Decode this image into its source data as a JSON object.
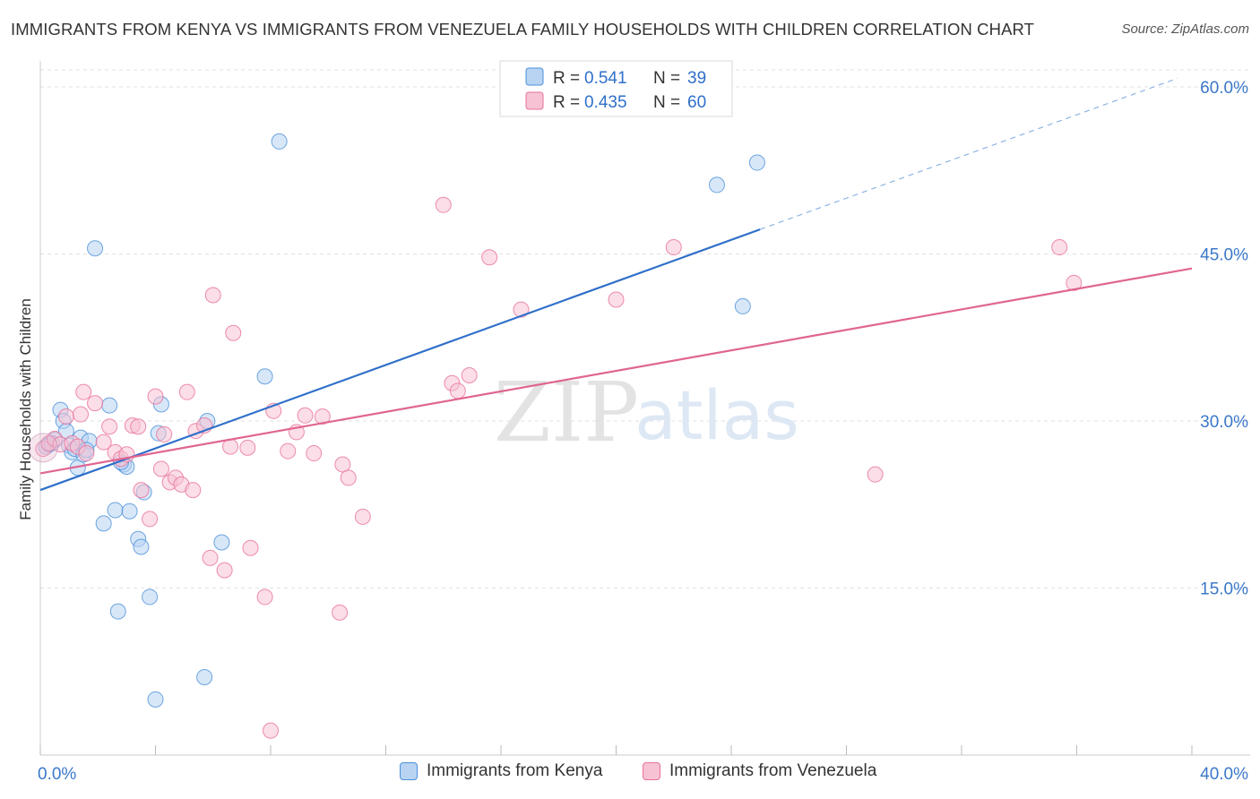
{
  "chart_data": {
    "type": "scatter",
    "title": "IMMIGRANTS FROM KENYA VS IMMIGRANTS FROM VENEZUELA FAMILY HOUSEHOLDS WITH CHILDREN CORRELATION CHART",
    "source": "Source: ZipAtlas.com",
    "ylabel": "Family Households with Children",
    "xlim": [
      0,
      40
    ],
    "ylim": [
      0,
      63
    ],
    "x_tick_labels": [
      "0.0%",
      "40.0%"
    ],
    "y_ticks": [
      15,
      30,
      45,
      60
    ],
    "y_tick_labels": [
      "15.0%",
      "30.0%",
      "45.0%",
      "60.0%"
    ],
    "watermark": {
      "zip": "ZIP",
      "atlas": "atlas"
    },
    "legend": {
      "r_label": "R =",
      "n_label": "N =",
      "entries": [
        {
          "r": "0.541",
          "n": "39"
        },
        {
          "r": "0.435",
          "n": "60"
        }
      ]
    },
    "series": [
      {
        "name": "Immigrants from Kenya",
        "color": "#4a90d9",
        "fill": "#b8d4f2",
        "trend": {
          "x0": 0,
          "y0": 23.8,
          "x1": 25,
          "y1": 47.2,
          "dash_to_x": 39.5
        },
        "points": [
          [
            0.2,
            27.7
          ],
          [
            0.3,
            27.9
          ],
          [
            0.5,
            28.3
          ],
          [
            0.7,
            31.0
          ],
          [
            0.8,
            30.0
          ],
          [
            0.9,
            29.1
          ],
          [
            1.0,
            27.8
          ],
          [
            1.1,
            27.2
          ],
          [
            1.2,
            27.5
          ],
          [
            1.3,
            25.8
          ],
          [
            1.4,
            28.5
          ],
          [
            1.5,
            27.0
          ],
          [
            1.7,
            28.2
          ],
          [
            1.9,
            45.5
          ],
          [
            2.4,
            31.4
          ],
          [
            2.2,
            20.8
          ],
          [
            2.6,
            22.0
          ],
          [
            2.7,
            12.9
          ],
          [
            2.9,
            26.1
          ],
          [
            3.0,
            25.9
          ],
          [
            3.1,
            21.9
          ],
          [
            3.4,
            19.4
          ],
          [
            3.5,
            18.7
          ],
          [
            3.6,
            23.6
          ],
          [
            3.8,
            14.2
          ],
          [
            4.0,
            5.0
          ],
          [
            4.1,
            28.9
          ],
          [
            4.2,
            31.5
          ],
          [
            5.7,
            7.0
          ],
          [
            5.8,
            30.0
          ],
          [
            6.3,
            19.1
          ],
          [
            7.8,
            34.0
          ],
          [
            8.3,
            55.1
          ],
          [
            23.5,
            51.2
          ],
          [
            24.4,
            40.3
          ],
          [
            24.9,
            53.2
          ],
          [
            0.4,
            28.0
          ],
          [
            1.6,
            27.4
          ],
          [
            2.8,
            26.3
          ]
        ]
      },
      {
        "name": "Immigrants from Venezuela",
        "color": "#e8709a",
        "fill": "#f7c3d4",
        "trend": {
          "x0": 0,
          "y0": 25.3,
          "x1": 40,
          "y1": 43.7
        },
        "points": [
          [
            0.1,
            27.5
          ],
          [
            0.3,
            28.0
          ],
          [
            0.5,
            28.4
          ],
          [
            0.7,
            27.9
          ],
          [
            0.9,
            30.4
          ],
          [
            1.1,
            28.0
          ],
          [
            1.3,
            27.7
          ],
          [
            1.4,
            30.6
          ],
          [
            1.5,
            32.6
          ],
          [
            1.6,
            27.1
          ],
          [
            1.9,
            31.6
          ],
          [
            2.2,
            28.1
          ],
          [
            2.4,
            29.5
          ],
          [
            2.6,
            27.2
          ],
          [
            2.8,
            26.6
          ],
          [
            3.0,
            27.0
          ],
          [
            3.2,
            29.6
          ],
          [
            3.4,
            29.5
          ],
          [
            3.5,
            23.8
          ],
          [
            3.8,
            21.2
          ],
          [
            4.0,
            32.2
          ],
          [
            4.2,
            25.7
          ],
          [
            4.3,
            28.8
          ],
          [
            4.5,
            24.5
          ],
          [
            4.7,
            24.9
          ],
          [
            4.9,
            24.3
          ],
          [
            5.1,
            32.6
          ],
          [
            5.3,
            23.8
          ],
          [
            5.4,
            29.1
          ],
          [
            5.7,
            29.6
          ],
          [
            5.9,
            17.7
          ],
          [
            6.0,
            41.3
          ],
          [
            6.4,
            16.6
          ],
          [
            6.6,
            27.7
          ],
          [
            6.7,
            37.9
          ],
          [
            7.2,
            27.6
          ],
          [
            7.3,
            18.6
          ],
          [
            7.8,
            14.2
          ],
          [
            8.1,
            30.9
          ],
          [
            8.0,
            2.2
          ],
          [
            8.6,
            27.3
          ],
          [
            8.9,
            29.0
          ],
          [
            9.2,
            30.5
          ],
          [
            9.5,
            27.1
          ],
          [
            9.8,
            30.4
          ],
          [
            10.4,
            12.8
          ],
          [
            10.5,
            26.1
          ],
          [
            10.7,
            24.9
          ],
          [
            11.2,
            21.4
          ],
          [
            14.0,
            49.4
          ],
          [
            14.3,
            33.4
          ],
          [
            14.5,
            32.7
          ],
          [
            14.9,
            34.1
          ],
          [
            15.6,
            44.7
          ],
          [
            16.7,
            40.0
          ],
          [
            20.0,
            40.9
          ],
          [
            22.0,
            45.6
          ],
          [
            29.0,
            25.2
          ],
          [
            35.4,
            45.6
          ],
          [
            35.9,
            42.4
          ]
        ]
      }
    ]
  }
}
